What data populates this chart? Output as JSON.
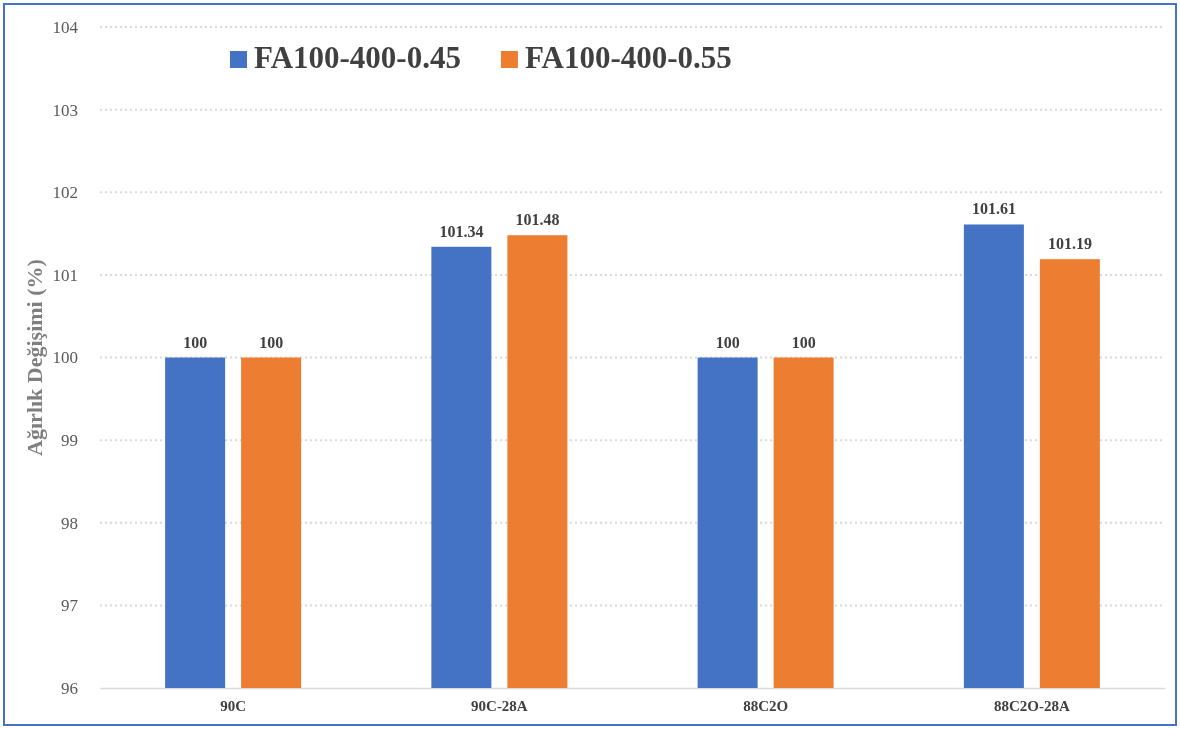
{
  "chart_data": {
    "type": "bar",
    "ylabel": "Ağırlık Değişimi (%)",
    "categories": [
      "90C",
      "90C-28A",
      "88C2O",
      "88C2O-28A"
    ],
    "series": [
      {
        "name": "FA100-400-0.45",
        "color": "#4472c4",
        "values": [
          100,
          101.34,
          100,
          101.61
        ]
      },
      {
        "name": "FA100-400-0.55",
        "color": "#ed7d31",
        "values": [
          100,
          101.48,
          100,
          101.19
        ]
      }
    ],
    "ylim": [
      96,
      104
    ],
    "yticks": [
      96,
      97,
      98,
      99,
      100,
      101,
      102,
      103,
      104
    ],
    "grid": "y",
    "legend": "top",
    "data_labels": true
  }
}
